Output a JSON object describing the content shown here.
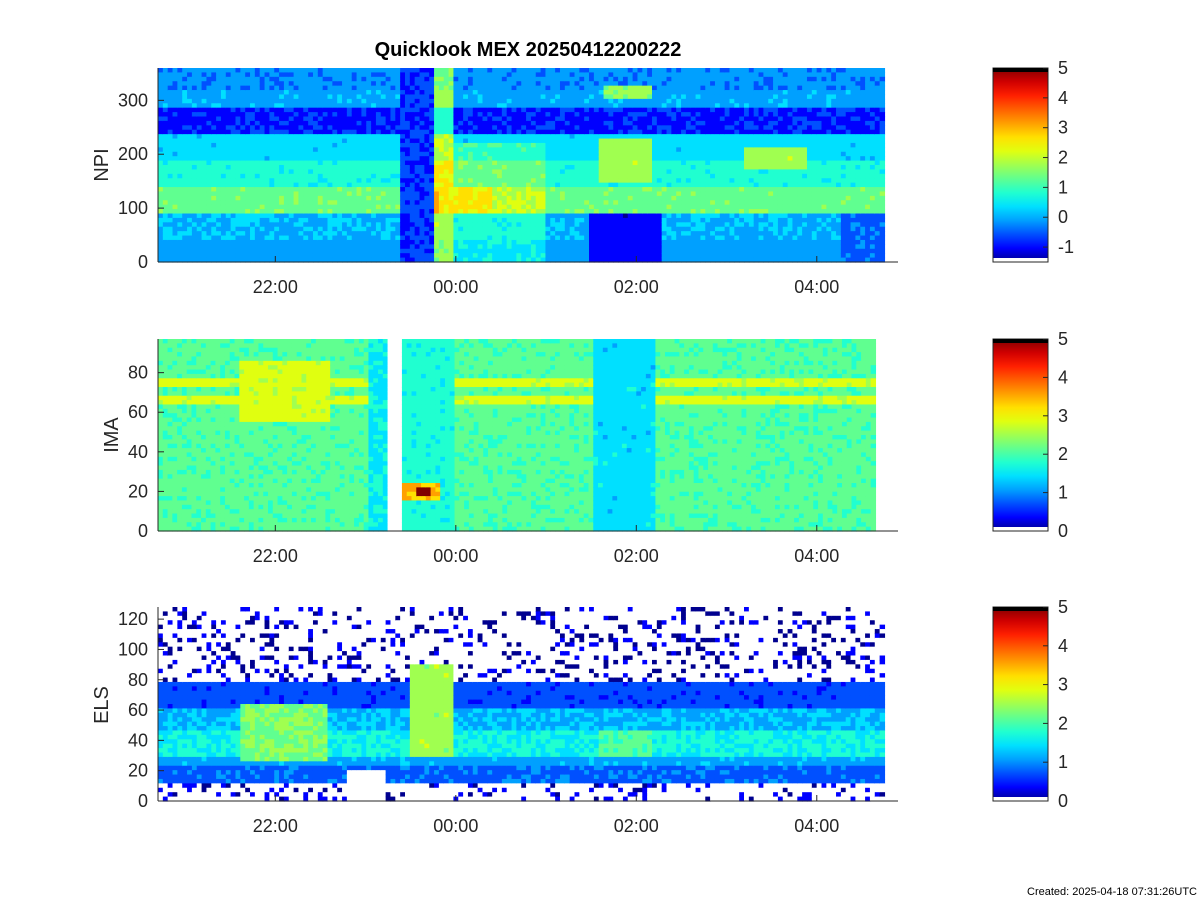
{
  "footer": {
    "created": "Created: 2025-04-18 07:31:26UTC"
  },
  "colormap": [
    "#00008f",
    "#0000ff",
    "#0050ff",
    "#00a0ff",
    "#00e0ff",
    "#20ffd0",
    "#60ff90",
    "#a0ff50",
    "#e0ff10",
    "#ffe000",
    "#ffa000",
    "#ff6000",
    "#ff2000",
    "#d00000",
    "#800000"
  ],
  "chart_data": [
    {
      "type": "heatmap",
      "title": "Quicklook MEX 20250412200222",
      "ylabel": "NPI",
      "xtick_labels": [
        "22:00",
        "00:00",
        "02:00",
        "04:00"
      ],
      "xtick_hours": [
        22,
        24,
        26,
        28
      ],
      "x_range_hours": [
        20.7,
        28.75
      ],
      "ylim": [
        0,
        360
      ],
      "ytick_values": [
        0,
        100,
        200,
        300
      ],
      "ytick_labels": [
        "0",
        "100",
        "200",
        "300"
      ],
      "colorbar": {
        "clim": [
          -1.5,
          5
        ],
        "tick_values": [
          -1,
          0,
          1,
          2,
          3,
          4,
          5
        ],
        "tick_labels": [
          "-1",
          "0",
          "1",
          "2",
          "3",
          "4",
          "5"
        ]
      },
      "rows": [
        {
          "y": [
            0,
            45
          ],
          "base": 0.0
        },
        {
          "y": [
            45,
            90
          ],
          "base": 0.2
        },
        {
          "y": [
            90,
            140
          ],
          "base": 1.4
        },
        {
          "y": [
            140,
            185
          ],
          "base": 0.8
        },
        {
          "y": [
            185,
            235
          ],
          "base": 0.4
        },
        {
          "y": [
            235,
            285
          ],
          "base": -0.7
        },
        {
          "y": [
            285,
            320
          ],
          "base": 0.1
        },
        {
          "y": [
            320,
            360
          ],
          "base": -0.1
        }
      ],
      "events": [
        {
          "x": [
            23.4,
            23.75
          ],
          "y": [
            0,
            360
          ],
          "value": -0.6,
          "mode": "set"
        },
        {
          "x": [
            23.75,
            24.0
          ],
          "y": [
            0,
            360
          ],
          "value": 1.6,
          "mode": "add"
        },
        {
          "x": [
            24.0,
            25.0
          ],
          "y": [
            0,
            220
          ],
          "value": 0.6,
          "mode": "add"
        },
        {
          "x": [
            23.8,
            24.4
          ],
          "y": [
            90,
            140
          ],
          "value": 2.4,
          "mode": "set"
        },
        {
          "x": [
            25.5,
            26.3
          ],
          "y": [
            0,
            90
          ],
          "value": -0.9,
          "mode": "set"
        },
        {
          "x": [
            25.6,
            26.2
          ],
          "y": [
            150,
            230
          ],
          "value": 1.8,
          "mode": "set"
        },
        {
          "x": [
            25.65,
            26.2
          ],
          "y": [
            300,
            330
          ],
          "value": 1.6,
          "mode": "set"
        },
        {
          "x": [
            27.2,
            27.9
          ],
          "y": [
            170,
            215
          ],
          "value": 1.8,
          "mode": "set"
        },
        {
          "x": [
            28.25,
            28.75
          ],
          "y": [
            0,
            90
          ],
          "value": -0.3,
          "mode": "set"
        }
      ]
    },
    {
      "type": "heatmap",
      "ylabel": "IMA",
      "xtick_labels": [
        "22:00",
        "00:00",
        "02:00",
        "04:00"
      ],
      "xtick_hours": [
        22,
        24,
        26,
        28
      ],
      "x_range_hours": [
        20.7,
        28.65
      ],
      "ylim": [
        0,
        97
      ],
      "ytick_values": [
        0,
        20,
        40,
        60,
        80
      ],
      "ytick_labels": [
        "0",
        "20",
        "40",
        "60",
        "80"
      ],
      "colorbar": {
        "clim": [
          0,
          5
        ],
        "tick_values": [
          0,
          1,
          2,
          3,
          4,
          5
        ],
        "tick_labels": [
          "0",
          "1",
          "2",
          "3",
          "4",
          "5"
        ]
      },
      "rows": [
        {
          "y": [
            0,
            97
          ],
          "base": 2.1
        }
      ],
      "events": [
        {
          "x": [
            20.7,
            28.65
          ],
          "y": [
            63,
            68
          ],
          "value": 2.8,
          "mode": "set"
        },
        {
          "x": [
            20.7,
            28.65
          ],
          "y": [
            72,
            77
          ],
          "value": 2.8,
          "mode": "set"
        },
        {
          "x": [
            21.6,
            22.6
          ],
          "y": [
            55,
            85
          ],
          "value": 2.8,
          "mode": "set"
        },
        {
          "x": [
            23.05,
            23.25
          ],
          "y": [
            0,
            97
          ],
          "value": 1.6,
          "mode": "set"
        },
        {
          "x": [
            23.25,
            23.4
          ],
          "y": [
            0,
            97
          ],
          "value": null,
          "mode": "set"
        },
        {
          "x": [
            23.4,
            24.0
          ],
          "y": [
            0,
            97
          ],
          "value": 1.8,
          "mode": "set"
        },
        {
          "x": [
            23.4,
            23.85
          ],
          "y": [
            16,
            24
          ],
          "value": 3.4,
          "mode": "set"
        },
        {
          "x": [
            23.55,
            23.7
          ],
          "y": [
            17,
            21
          ],
          "value": 4.8,
          "mode": "set"
        },
        {
          "x": [
            25.5,
            26.2
          ],
          "y": [
            0,
            97
          ],
          "value": 1.5,
          "mode": "set"
        }
      ]
    },
    {
      "type": "heatmap",
      "ylabel": "ELS",
      "xtick_labels": [
        "22:00",
        "00:00",
        "02:00",
        "04:00"
      ],
      "xtick_hours": [
        22,
        24,
        26,
        28
      ],
      "x_range_hours": [
        20.7,
        28.75
      ],
      "ylim": [
        0,
        128
      ],
      "ytick_values": [
        0,
        20,
        40,
        60,
        80,
        100,
        120
      ],
      "ytick_labels": [
        "0",
        "20",
        "40",
        "60",
        "80",
        "100",
        "120"
      ],
      "colorbar": {
        "clim": [
          0,
          5
        ],
        "tick_values": [
          0,
          1,
          2,
          3,
          4,
          5
        ],
        "tick_labels": [
          "0",
          "1",
          "2",
          "3",
          "4",
          "5"
        ]
      },
      "rows": [
        {
          "y": [
            0,
            12
          ],
          "base": 0.4
        },
        {
          "y": [
            12,
            22
          ],
          "base": 0.9
        },
        {
          "y": [
            22,
            30
          ],
          "base": 1.2
        },
        {
          "y": [
            30,
            48
          ],
          "base": 1.7
        },
        {
          "y": [
            48,
            62
          ],
          "base": 1.3
        },
        {
          "y": [
            62,
            80
          ],
          "base": 0.8
        },
        {
          "y": [
            80,
            128
          ],
          "base": 0.3
        }
      ],
      "events": [
        {
          "x": [
            21.6,
            22.6
          ],
          "y": [
            25,
            65
          ],
          "value": 2.3,
          "mode": "set"
        },
        {
          "x": [
            22.8,
            23.2
          ],
          "y": [
            0,
            20
          ],
          "value": null,
          "mode": "set"
        },
        {
          "x": [
            23.5,
            24.0
          ],
          "y": [
            30,
            90
          ],
          "value": 2.5,
          "mode": "set"
        },
        {
          "x": [
            25.6,
            26.2
          ],
          "y": [
            30,
            48
          ],
          "value": 2.1,
          "mode": "set"
        }
      ]
    }
  ]
}
